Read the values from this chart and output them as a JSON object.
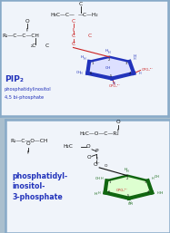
{
  "bg_outer": "#aabfce",
  "bg_panel": "#f0f4fa",
  "panel1_label1": "PIP₂",
  "panel1_label2": "phosphatidylinositol",
  "panel1_label3": "4,5 bi-phosphate",
  "panel2_label1": "phosphatidyl-",
  "panel2_label2": "inositol-",
  "panel2_label3": "3-phosphate",
  "blue": "#2233bb",
  "red": "#cc2222",
  "green": "#116611",
  "black": "#111111",
  "ring_blue_fill": "#dde0ff",
  "ring_green_fill": "#ddffd0"
}
